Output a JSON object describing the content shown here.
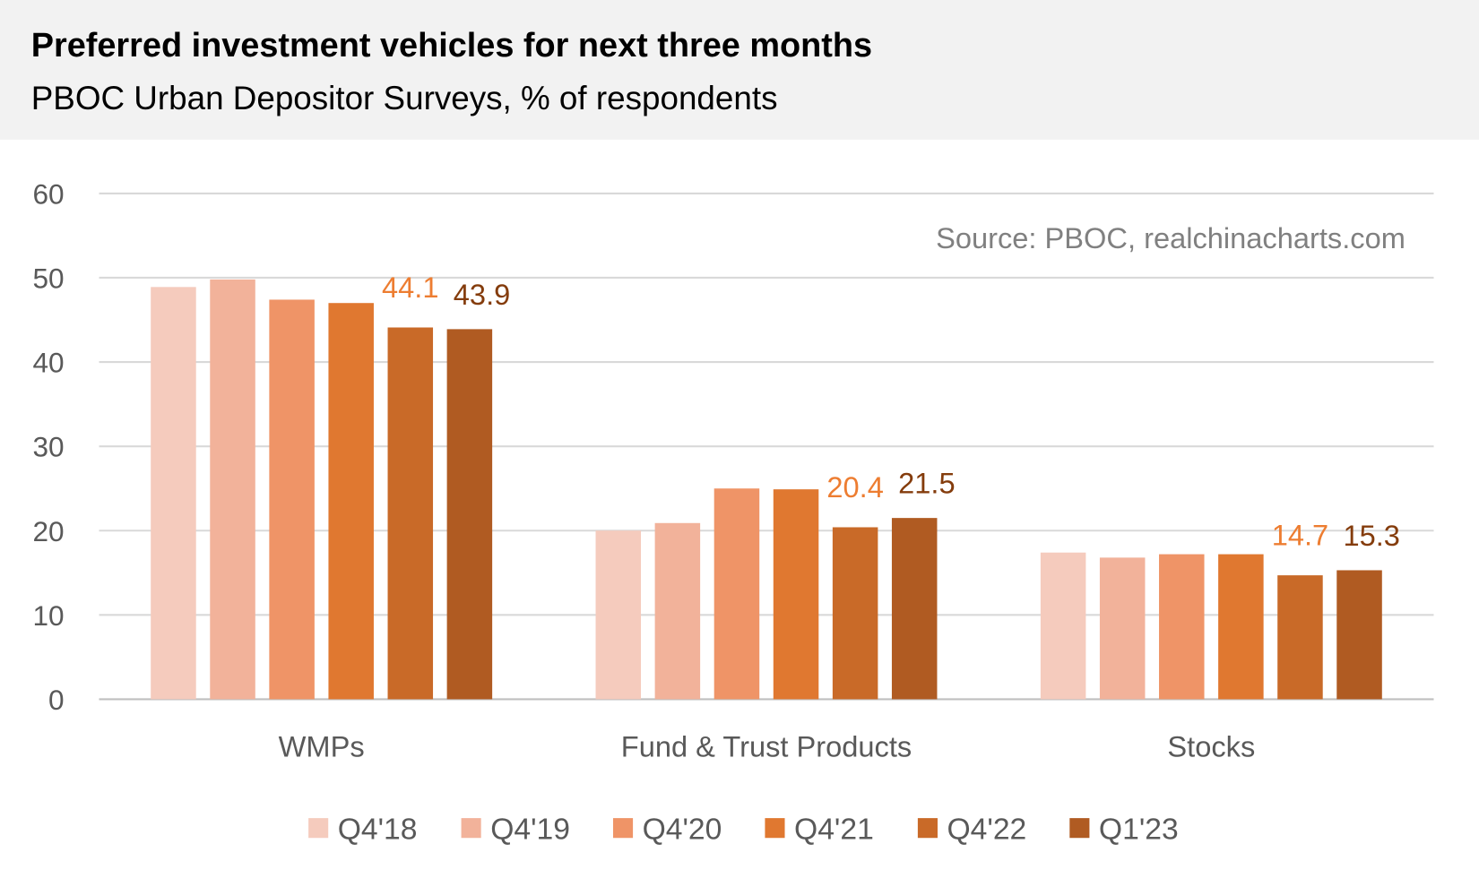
{
  "header": {
    "title": "Preferred investment vehicles for next three months",
    "subtitle": "PBOC Urban Depositor Surveys, % of respondents"
  },
  "source": "Source: PBOC, realchinacharts.com",
  "chart_data": {
    "type": "bar",
    "title": "Preferred investment vehicles for next three months",
    "subtitle": "PBOC Urban Depositor Surveys, % of respondents",
    "xlabel": "",
    "ylabel": "",
    "ylim": [
      0,
      60
    ],
    "yticks": [
      "0",
      "10",
      "20",
      "30",
      "40",
      "50",
      "60"
    ],
    "grid": true,
    "legend_position": "bottom",
    "categories": [
      "WMPs",
      "Fund & Trust Products",
      "Stocks"
    ],
    "series": [
      {
        "name": "Q4'18",
        "color": "#F5CBBD",
        "values": [
          48.9,
          20.0,
          17.4
        ]
      },
      {
        "name": "Q4'19",
        "color": "#F2B29A",
        "values": [
          49.8,
          20.9,
          16.8
        ]
      },
      {
        "name": "Q4'20",
        "color": "#EF9467",
        "values": [
          47.4,
          25.0,
          17.2
        ]
      },
      {
        "name": "Q4'21",
        "color": "#E07830",
        "values": [
          47.0,
          24.9,
          17.2
        ]
      },
      {
        "name": "Q4'22",
        "color": "#C96A28",
        "values": [
          44.1,
          20.4,
          14.7
        ],
        "label_color": "#ED7D31",
        "data_labels": [
          "44.1",
          "20.4",
          "14.7"
        ]
      },
      {
        "name": "Q1'23",
        "color": "#B05B22",
        "values": [
          43.9,
          21.5,
          15.3
        ],
        "label_color": "#843C0C",
        "data_labels": [
          "43.9",
          "21.5",
          "15.3"
        ]
      }
    ]
  }
}
